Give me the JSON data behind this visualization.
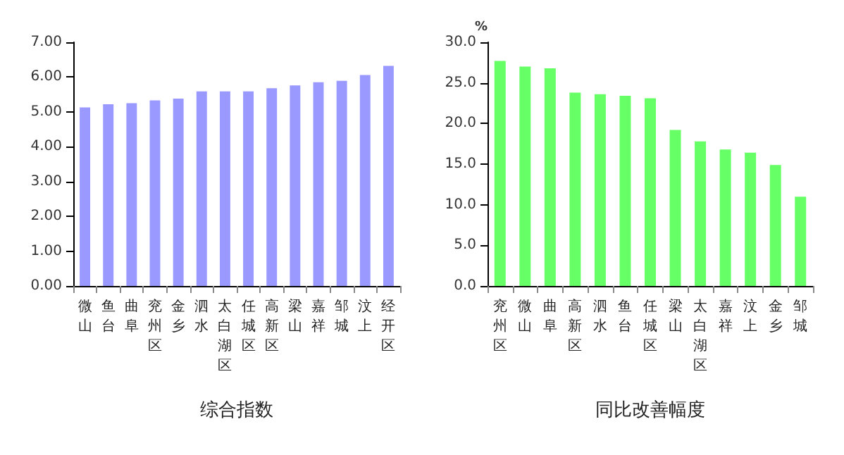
{
  "chart_data": [
    {
      "type": "bar",
      "xlabel": "综合指数",
      "categories": [
        "微山",
        "鱼台",
        "曲阜",
        "兖州区",
        "金乡",
        "泗水",
        "太白湖区",
        "任城区",
        "高新区",
        "梁山",
        "嘉祥",
        "邹城",
        "汶上",
        "经开区"
      ],
      "series": [
        {
          "color": "#9999ff",
          "values": [
            5.13,
            5.22,
            5.25,
            5.33,
            5.38,
            5.59,
            5.59,
            5.59,
            5.68,
            5.76,
            5.85,
            5.89,
            6.06,
            6.32
          ]
        }
      ],
      "ylim": [
        0,
        7
      ],
      "yticks": [
        {
          "value": 0,
          "label": "0.00"
        },
        {
          "value": 1,
          "label": "1.00"
        },
        {
          "value": 2,
          "label": "2.00"
        },
        {
          "value": 3,
          "label": "3.00"
        },
        {
          "value": 4,
          "label": "4.00"
        },
        {
          "value": 5,
          "label": "5.00"
        },
        {
          "value": 6,
          "label": "6.00"
        },
        {
          "value": 7,
          "label": "7.00"
        }
      ],
      "grid": false
    },
    {
      "type": "bar",
      "xlabel": "同比改善幅度",
      "ylabel": "%",
      "categories": [
        "兖州区",
        "微山",
        "曲阜",
        "高新区",
        "泗水",
        "鱼台",
        "任城区",
        "梁山",
        "太白湖区",
        "嘉祥",
        "汶上",
        "金乡",
        "邹城"
      ],
      "series": [
        {
          "color": "#66ff66",
          "values": [
            27.7,
            27.0,
            26.8,
            23.8,
            23.6,
            23.4,
            23.1,
            19.2,
            17.8,
            16.8,
            16.4,
            14.9,
            11.0
          ]
        }
      ],
      "ylim": [
        0,
        30
      ],
      "yticks": [
        {
          "value": 0,
          "label": "0.0"
        },
        {
          "value": 5,
          "label": "5.0"
        },
        {
          "value": 10,
          "label": "10.0"
        },
        {
          "value": 15,
          "label": "15.0"
        },
        {
          "value": 20,
          "label": "20.0"
        },
        {
          "value": 25,
          "label": "25.0"
        },
        {
          "value": 30,
          "label": "30.0"
        }
      ],
      "grid": false
    }
  ]
}
